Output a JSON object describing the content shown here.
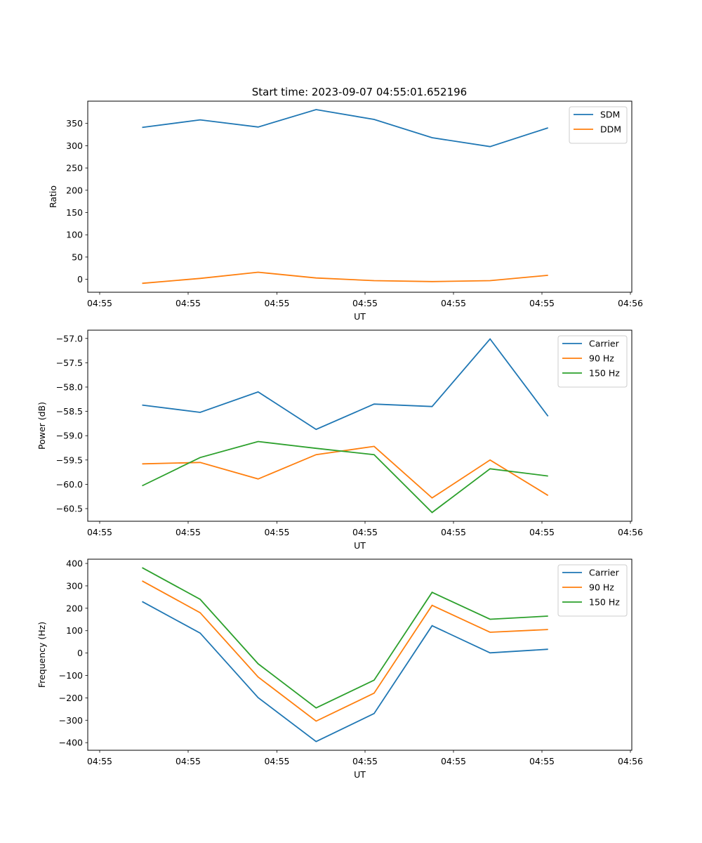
{
  "figure": {
    "title": "Start time: 2023-09-07 04:55:01.652196"
  },
  "chart_data": [
    {
      "type": "line",
      "title": "Start time: 2023-09-07 04:55:01.652196",
      "xlabel": "UT",
      "ylabel": "Ratio",
      "x": [
        1,
        2,
        3,
        4,
        5,
        6,
        7,
        8
      ],
      "x_tick_labels": [
        "04:55",
        "04:55",
        "04:55",
        "04:55",
        "04:55",
        "04:55",
        "04:56"
      ],
      "yticks": [
        0,
        50,
        100,
        150,
        200,
        250,
        300,
        350
      ],
      "y_tick_labels": [
        "0",
        "50",
        "100",
        "150",
        "200",
        "250",
        "300",
        "350"
      ],
      "ylim": [
        -29,
        400
      ],
      "grid": false,
      "legend": "top-right",
      "series": [
        {
          "name": "SDM",
          "color": "#1f77b4",
          "values": [
            341,
            358,
            342,
            381,
            359,
            318,
            298,
            340
          ]
        },
        {
          "name": "DDM",
          "color": "#ff7f0e",
          "values": [
            -9,
            2,
            16,
            3,
            -3,
            -5,
            -3,
            9
          ]
        }
      ]
    },
    {
      "type": "line",
      "title": "",
      "xlabel": "UT",
      "ylabel": "Power (dB)",
      "x": [
        1,
        2,
        3,
        4,
        5,
        6,
        7,
        8
      ],
      "x_tick_labels": [
        "04:55",
        "04:55",
        "04:55",
        "04:55",
        "04:55",
        "04:55",
        "04:56"
      ],
      "yticks": [
        -60.5,
        -60.0,
        -59.5,
        -59.0,
        -58.5,
        -58.0,
        -57.5,
        -57.0
      ],
      "y_tick_labels": [
        "−60.5",
        "−60.0",
        "−59.5",
        "−59.0",
        "−58.5",
        "−58.0",
        "−57.5",
        "−57.0"
      ],
      "ylim": [
        -60.76,
        -56.83
      ],
      "grid": false,
      "legend": "top-right",
      "series": [
        {
          "name": "Carrier",
          "color": "#1f77b4",
          "values": [
            -58.37,
            -58.52,
            -58.1,
            -58.87,
            -58.35,
            -58.4,
            -57.01,
            -58.6
          ]
        },
        {
          "name": "90 Hz",
          "color": "#ff7f0e",
          "values": [
            -59.58,
            -59.55,
            -59.89,
            -59.39,
            -59.22,
            -60.28,
            -59.5,
            -60.23
          ]
        },
        {
          "name": "150 Hz",
          "color": "#2ca02c",
          "values": [
            -60.03,
            -59.45,
            -59.12,
            -59.26,
            -59.39,
            -60.58,
            -59.68,
            -59.83
          ]
        }
      ]
    },
    {
      "type": "line",
      "title": "",
      "xlabel": "UT",
      "ylabel": "Frequency (Hz)",
      "x": [
        1,
        2,
        3,
        4,
        5,
        6,
        7,
        8
      ],
      "x_tick_labels": [
        "04:55",
        "04:55",
        "04:55",
        "04:55",
        "04:55",
        "04:55",
        "04:56"
      ],
      "yticks": [
        -400,
        -300,
        -200,
        -100,
        0,
        100,
        200,
        300,
        400
      ],
      "y_tick_labels": [
        "−400",
        "−300",
        "−200",
        "−100",
        "0",
        "100",
        "200",
        "300",
        "400"
      ],
      "ylim": [
        -434,
        419
      ],
      "grid": false,
      "legend": "top-right",
      "series": [
        {
          "name": "Carrier",
          "color": "#1f77b4",
          "values": [
            230,
            89,
            -199,
            -395,
            -270,
            122,
            1,
            17
          ]
        },
        {
          "name": "90 Hz",
          "color": "#ff7f0e",
          "values": [
            322,
            180,
            -107,
            -304,
            -179,
            213,
            93,
            105
          ]
        },
        {
          "name": "150 Hz",
          "color": "#2ca02c",
          "values": [
            381,
            240,
            -48,
            -245,
            -121,
            271,
            151,
            165
          ]
        }
      ]
    }
  ]
}
